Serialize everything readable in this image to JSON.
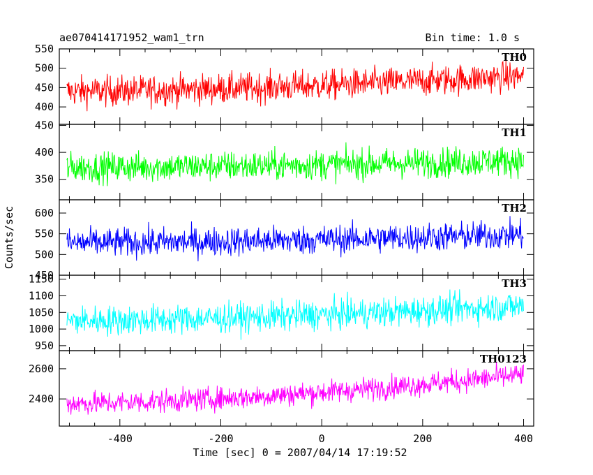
{
  "chart_data": {
    "type": "line",
    "title": "ae070414171952_wam1_trn",
    "bin_time": "Bin time: 1.0 s",
    "xlabel": "Time [sec] 0 = 2007/04/14 17:19:52",
    "ylabel": "Counts/sec",
    "xlim": [
      -520,
      420
    ],
    "xticks": [
      -400,
      -200,
      0,
      200,
      400
    ],
    "x_range": [
      -505,
      400
    ],
    "panels": [
      {
        "name": "TH0",
        "color": "#ff0000",
        "ylim": [
          355,
          550
        ],
        "yticks": [
          400,
          450,
          500,
          550
        ],
        "mean_start": 440,
        "mean_end": 480,
        "noise": 28
      },
      {
        "name": "TH1",
        "color": "#00ff00",
        "ylim": [
          312,
          452
        ],
        "yticks": [
          350,
          400,
          450
        ],
        "mean_start": 372,
        "mean_end": 385,
        "noise": 20
      },
      {
        "name": "TH2",
        "color": "#0000ff",
        "ylim": [
          450,
          632
        ],
        "yticks": [
          450,
          500,
          550,
          600
        ],
        "mean_start": 528,
        "mean_end": 548,
        "noise": 25
      },
      {
        "name": "TH3",
        "color": "#00ffff",
        "ylim": [
          935,
          1162
        ],
        "yticks": [
          950,
          1000,
          1050,
          1100,
          1150
        ],
        "mean_start": 1025,
        "mean_end": 1070,
        "noise": 32
      },
      {
        "name": "TH0123",
        "color": "#ff00ff",
        "ylim": [
          2220,
          2720
        ],
        "yticks": [
          2400,
          2600
        ],
        "mean_start": 2370,
        "mean_end": 2560,
        "noise": 55
      }
    ]
  }
}
